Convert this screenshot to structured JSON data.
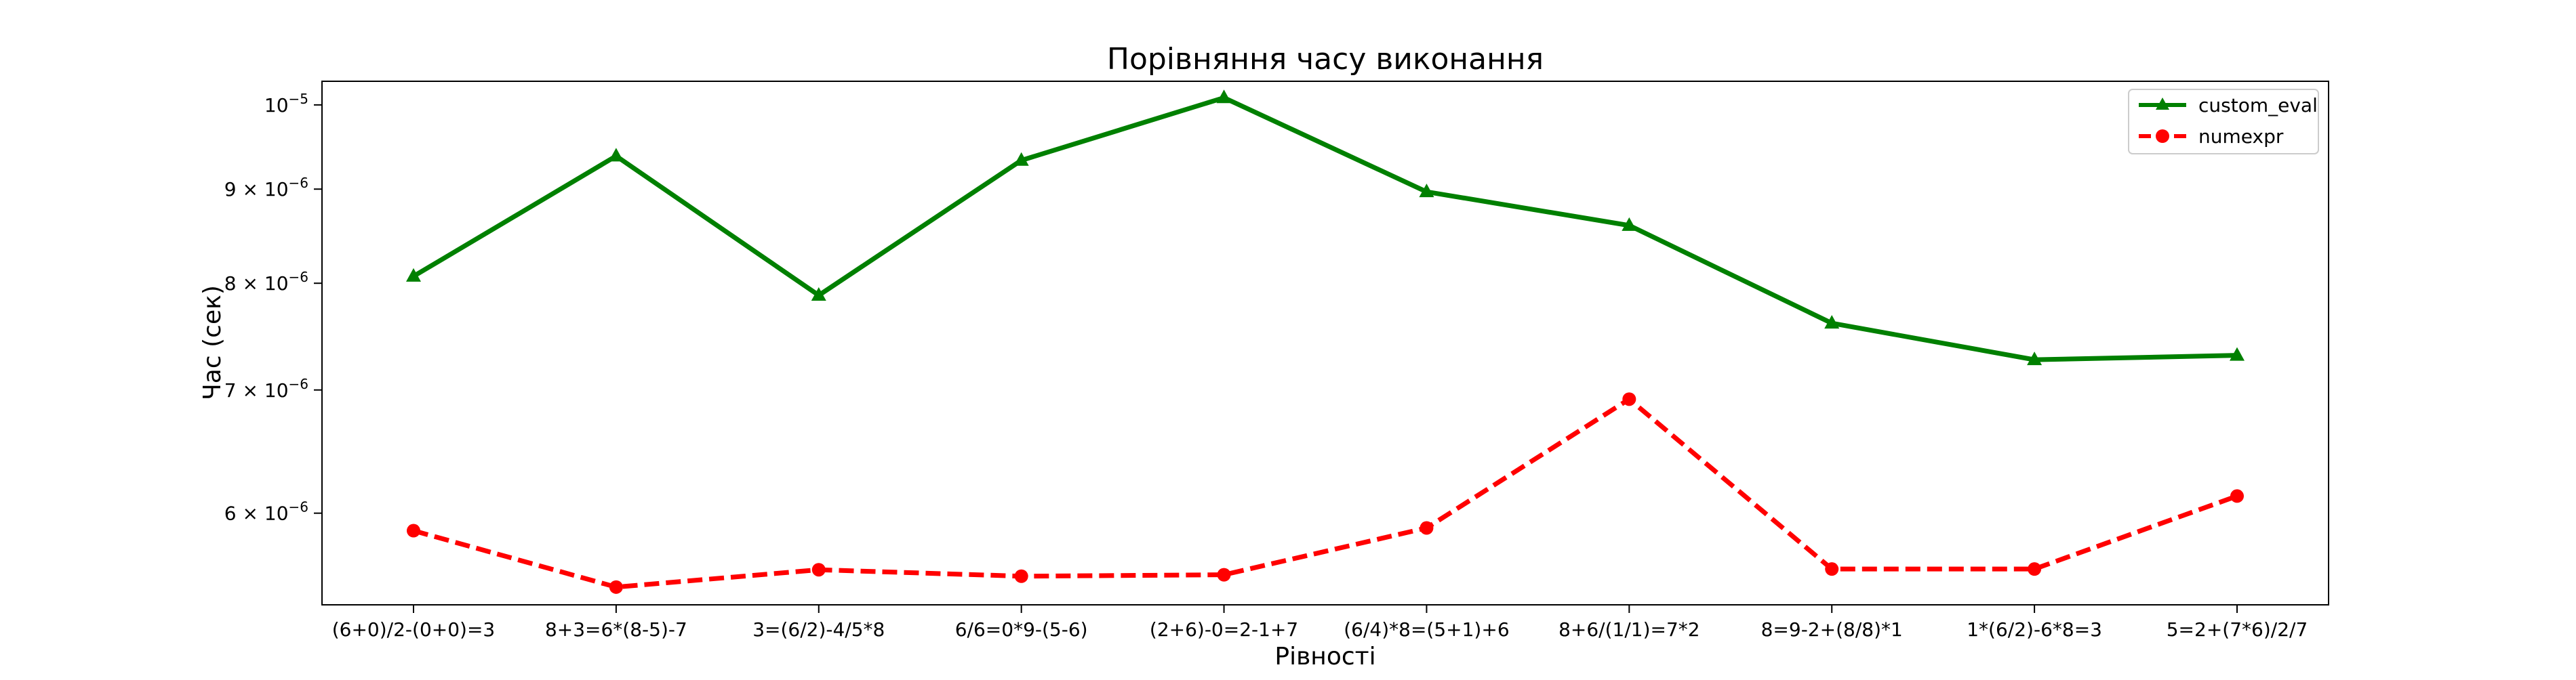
{
  "chart_data": {
    "type": "line",
    "title": "Порівняння часу виконання",
    "xlabel": "Рівності",
    "ylabel": "Час (сек)",
    "yscale": "log",
    "ylim": [
      5.35e-06,
      1.03e-05
    ],
    "grid": false,
    "legend_position": "top-right",
    "categories": [
      "(6+0)/2-(0+0)=3",
      "8+3=6*(8-5)-7",
      "3=(6/2)-4/5*8",
      "6/6=0*9-(5-6)",
      "(2+6)-0=2-1+7",
      "(6/4)*8=(5+1)+6",
      "8+6/(1/1)=7*2",
      "8=9-2+(8/8)*1",
      "1*(6/2)-6*8=3",
      "5=2+(7*6)/2/7"
    ],
    "y_ticks": [
      {
        "value": 6e-06,
        "mantissa": "6",
        "base": "10",
        "exponent": "−6"
      },
      {
        "value": 7e-06,
        "mantissa": "7",
        "base": "10",
        "exponent": "−6"
      },
      {
        "value": 8e-06,
        "mantissa": "8",
        "base": "10",
        "exponent": "−6"
      },
      {
        "value": 9e-06,
        "mantissa": "9",
        "base": "10",
        "exponent": "−6"
      },
      {
        "value": 1e-05,
        "mantissa": "",
        "base": "10",
        "exponent": "−5"
      }
    ],
    "series": [
      {
        "name": "custom_eval",
        "color": "#008000",
        "marker": "triangle",
        "line_style": "solid",
        "values": [
          8.07e-06,
          9.38e-06,
          7.88e-06,
          9.33e-06,
          1.009e-05,
          8.97e-06,
          8.6e-06,
          7.61e-06,
          7.27e-06,
          7.31e-06
        ]
      },
      {
        "name": "numexpr",
        "color": "#ff0000",
        "marker": "circle",
        "line_style": "dashed",
        "values": [
          5.87e-06,
          5.47e-06,
          5.59e-06,
          5.545e-06,
          5.555e-06,
          5.89e-06,
          6.92e-06,
          5.595e-06,
          5.595e-06,
          6.13e-06
        ]
      }
    ]
  }
}
